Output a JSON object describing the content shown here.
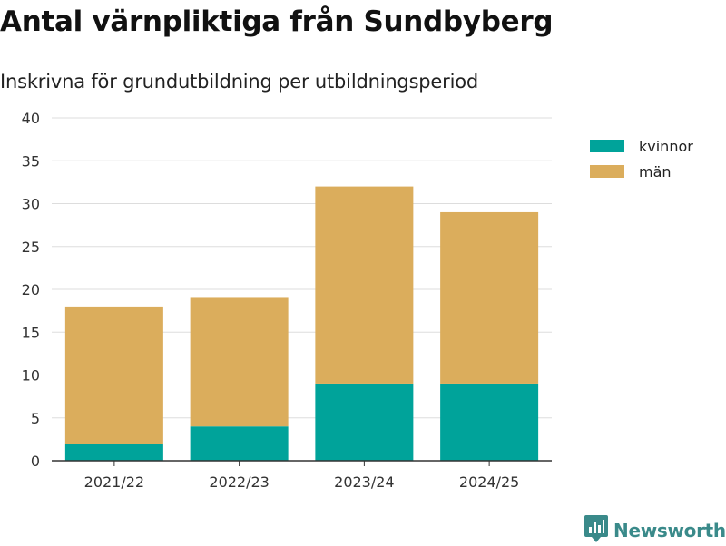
{
  "header": {
    "title": "Antal värnpliktiga från Sundbyberg",
    "subtitle": "Inskrivna för grundutbildning per utbildningsperiod"
  },
  "brand": {
    "name": "Newsworthy",
    "icon": "newsworthy-logo-icon",
    "color": "#3a8a8a"
  },
  "colors": {
    "kvinnor": "#00a39a",
    "man": "#dbad5c",
    "grid": "#dddddd",
    "axis": "#333333"
  },
  "chart_data": {
    "type": "bar",
    "stacked": true,
    "categories": [
      "2021/22",
      "2022/23",
      "2023/24",
      "2024/25"
    ],
    "series": [
      {
        "name": "kvinnor",
        "values": [
          2,
          4,
          9,
          9
        ],
        "color": "#00a39a"
      },
      {
        "name": "män",
        "values": [
          16,
          15,
          23,
          20
        ],
        "color": "#dbad5c"
      }
    ],
    "title": "Antal värnpliktiga från Sundbyberg",
    "subtitle": "Inskrivna för grundutbildning per utbildningsperiod",
    "ylim": [
      0,
      40
    ],
    "yticks": [
      0,
      5,
      10,
      15,
      20,
      25,
      30,
      35,
      40
    ],
    "grid": true,
    "legend_position": "right-top"
  }
}
